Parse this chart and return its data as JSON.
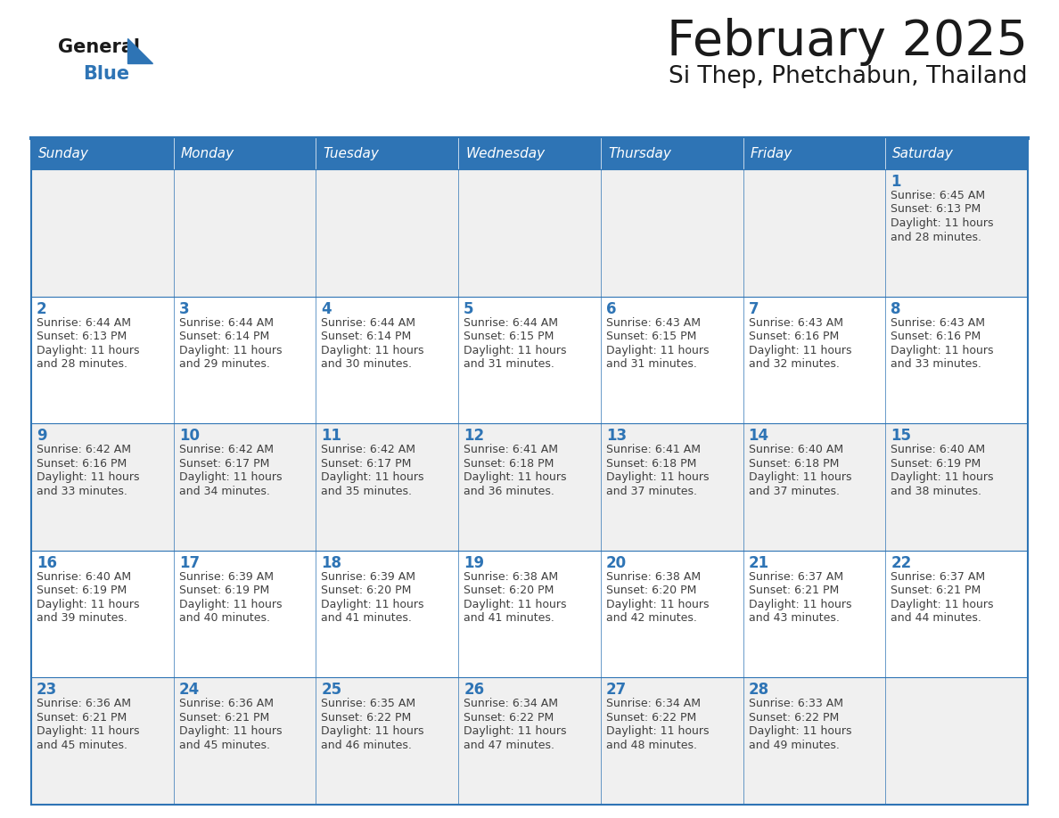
{
  "title": "February 2025",
  "subtitle": "Si Thep, Phetchabun, Thailand",
  "days_of_week": [
    "Sunday",
    "Monday",
    "Tuesday",
    "Wednesday",
    "Thursday",
    "Friday",
    "Saturday"
  ],
  "header_bg": "#2E74B5",
  "header_text": "#FFFFFF",
  "row_bg_odd": "#F0F0F0",
  "row_bg_even": "#FFFFFF",
  "border_color": "#2E74B5",
  "day_num_color": "#2E74B5",
  "info_color": "#404040",
  "title_color": "#1a1a1a",
  "logo_black": "#1a1a1a",
  "logo_blue": "#2E74B5",
  "calendar": [
    [
      null,
      null,
      null,
      null,
      null,
      null,
      1
    ],
    [
      2,
      3,
      4,
      5,
      6,
      7,
      8
    ],
    [
      9,
      10,
      11,
      12,
      13,
      14,
      15
    ],
    [
      16,
      17,
      18,
      19,
      20,
      21,
      22
    ],
    [
      23,
      24,
      25,
      26,
      27,
      28,
      null
    ]
  ],
  "sunrise": {
    "1": "6:45 AM",
    "2": "6:44 AM",
    "3": "6:44 AM",
    "4": "6:44 AM",
    "5": "6:44 AM",
    "6": "6:43 AM",
    "7": "6:43 AM",
    "8": "6:43 AM",
    "9": "6:42 AM",
    "10": "6:42 AM",
    "11": "6:42 AM",
    "12": "6:41 AM",
    "13": "6:41 AM",
    "14": "6:40 AM",
    "15": "6:40 AM",
    "16": "6:40 AM",
    "17": "6:39 AM",
    "18": "6:39 AM",
    "19": "6:38 AM",
    "20": "6:38 AM",
    "21": "6:37 AM",
    "22": "6:37 AM",
    "23": "6:36 AM",
    "24": "6:36 AM",
    "25": "6:35 AM",
    "26": "6:34 AM",
    "27": "6:34 AM",
    "28": "6:33 AM"
  },
  "sunset": {
    "1": "6:13 PM",
    "2": "6:13 PM",
    "3": "6:14 PM",
    "4": "6:14 PM",
    "5": "6:15 PM",
    "6": "6:15 PM",
    "7": "6:16 PM",
    "8": "6:16 PM",
    "9": "6:16 PM",
    "10": "6:17 PM",
    "11": "6:17 PM",
    "12": "6:18 PM",
    "13": "6:18 PM",
    "14": "6:18 PM",
    "15": "6:19 PM",
    "16": "6:19 PM",
    "17": "6:19 PM",
    "18": "6:20 PM",
    "19": "6:20 PM",
    "20": "6:20 PM",
    "21": "6:21 PM",
    "22": "6:21 PM",
    "23": "6:21 PM",
    "24": "6:21 PM",
    "25": "6:22 PM",
    "26": "6:22 PM",
    "27": "6:22 PM",
    "28": "6:22 PM"
  },
  "daylight": {
    "1": "11 hours and 28 minutes.",
    "2": "11 hours and 28 minutes.",
    "3": "11 hours and 29 minutes.",
    "4": "11 hours and 30 minutes.",
    "5": "11 hours and 31 minutes.",
    "6": "11 hours and 31 minutes.",
    "7": "11 hours and 32 minutes.",
    "8": "11 hours and 33 minutes.",
    "9": "11 hours and 33 minutes.",
    "10": "11 hours and 34 minutes.",
    "11": "11 hours and 35 minutes.",
    "12": "11 hours and 36 minutes.",
    "13": "11 hours and 37 minutes.",
    "14": "11 hours and 37 minutes.",
    "15": "11 hours and 38 minutes.",
    "16": "11 hours and 39 minutes.",
    "17": "11 hours and 40 minutes.",
    "18": "11 hours and 41 minutes.",
    "19": "11 hours and 41 minutes.",
    "20": "11 hours and 42 minutes.",
    "21": "11 hours and 43 minutes.",
    "22": "11 hours and 44 minutes.",
    "23": "11 hours and 45 minutes.",
    "24": "11 hours and 45 minutes.",
    "25": "11 hours and 46 minutes.",
    "26": "11 hours and 47 minutes.",
    "27": "11 hours and 48 minutes.",
    "28": "11 hours and 49 minutes."
  }
}
